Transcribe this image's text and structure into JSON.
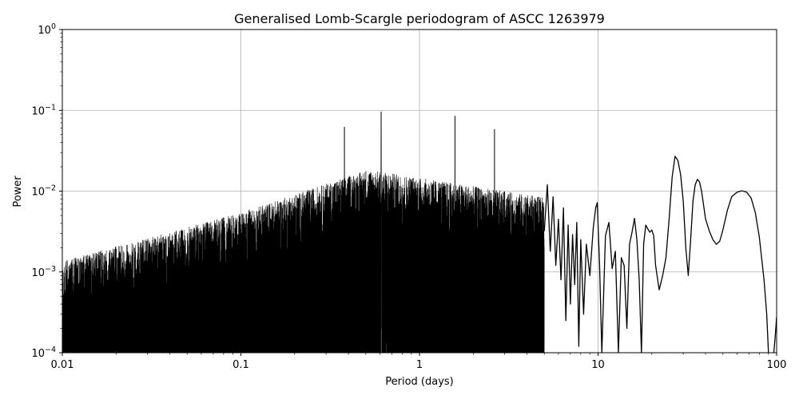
{
  "chart_data": {
    "type": "line",
    "title": "Generalised Lomb-Scargle periodogram of ASCC 1263979",
    "xlabel": "Period (days)",
    "ylabel": "Power",
    "xscale": "log",
    "yscale": "log",
    "xlim": [
      0.01,
      100
    ],
    "ylim": [
      0.0001,
      1
    ],
    "grid": true,
    "x_ticks": [
      {
        "value": 0.01,
        "label": "0.01"
      },
      {
        "value": 0.1,
        "label": "0.1"
      },
      {
        "value": 1,
        "label": "1"
      },
      {
        "value": 10,
        "label": "10"
      },
      {
        "value": 100,
        "label": "100"
      }
    ],
    "y_ticks": [
      {
        "value": 0.0001,
        "base": "10",
        "exp": "−4"
      },
      {
        "value": 0.001,
        "base": "10",
        "exp": "−3"
      },
      {
        "value": 0.01,
        "base": "10",
        "exp": "−2"
      },
      {
        "value": 0.1,
        "base": "10",
        "exp": "−1"
      },
      {
        "value": 1,
        "base": "10",
        "exp": "0"
      }
    ],
    "line_color": "#000000",
    "series": [
      {
        "x": [
          5.0,
          5.2,
          5.4,
          5.6,
          5.8,
          6.0,
          6.2,
          6.4,
          6.6,
          6.8,
          7.0,
          7.2,
          7.4,
          7.6,
          7.8,
          8.0,
          8.3,
          8.6,
          9.0,
          9.4,
          9.7,
          9.9,
          10.2,
          10.5,
          11.0,
          11.5,
          12.0,
          12.5,
          13.0,
          13.5,
          14.0,
          14.5,
          15.0,
          15.5,
          16.0,
          16.5,
          17.0,
          17.5,
          18.0,
          18.5,
          19.0,
          19.5,
          20.0,
          20.5,
          21.0,
          22.0,
          23.0,
          24.0,
          25.0,
          26.0,
          27.0,
          28.0,
          29.0,
          30.0,
          31.0,
          32.0,
          33.0,
          34.0,
          35.0,
          36.0,
          37.0,
          38.0,
          40.0,
          42.0,
          44.0,
          46.0,
          48.0,
          50.0,
          53.0,
          56.0,
          60.0,
          64.0,
          68.0,
          72.0,
          76.0,
          80.0,
          85.0,
          88.0,
          90.0,
          92.0,
          94.0,
          96.0,
          98.0,
          100.0
        ],
        "y": [
          0.0032,
          0.012,
          0.0018,
          0.0085,
          0.0012,
          0.0045,
          0.0008,
          0.0062,
          0.00025,
          0.0038,
          0.0004,
          0.0029,
          0.0007,
          0.0041,
          0.00012,
          0.0025,
          0.0003,
          0.0022,
          0.0009,
          0.0035,
          0.0062,
          0.0072,
          0.0012,
          0.0001,
          0.0028,
          0.0041,
          0.0011,
          0.0018,
          0.0001,
          0.0015,
          0.0012,
          0.0002,
          0.0022,
          0.0031,
          0.0046,
          0.0025,
          0.0008,
          0.0001,
          0.0022,
          0.0038,
          0.0034,
          0.0031,
          0.0033,
          0.0028,
          0.0012,
          0.0006,
          0.0009,
          0.0015,
          0.0045,
          0.015,
          0.027,
          0.024,
          0.016,
          0.0075,
          0.002,
          0.0009,
          0.0025,
          0.0075,
          0.012,
          0.014,
          0.013,
          0.01,
          0.0045,
          0.0032,
          0.0025,
          0.0022,
          0.0024,
          0.0033,
          0.0058,
          0.0085,
          0.0097,
          0.0101,
          0.0097,
          0.0082,
          0.0054,
          0.0027,
          0.0008,
          0.0003,
          0.0001,
          8e-05,
          5e-05,
          9e-05,
          0.00015,
          0.00028
        ]
      }
    ],
    "notable_peaks": [
      {
        "x": 0.38,
        "y": 0.062
      },
      {
        "x": 0.61,
        "y": 0.096
      },
      {
        "x": 1.58,
        "y": 0.085
      },
      {
        "x": 2.63,
        "y": 0.058
      },
      {
        "x": 26.5,
        "y": 0.027
      },
      {
        "x": 36.8,
        "y": 0.014
      },
      {
        "x": 64.0,
        "y": 0.0101
      }
    ]
  }
}
